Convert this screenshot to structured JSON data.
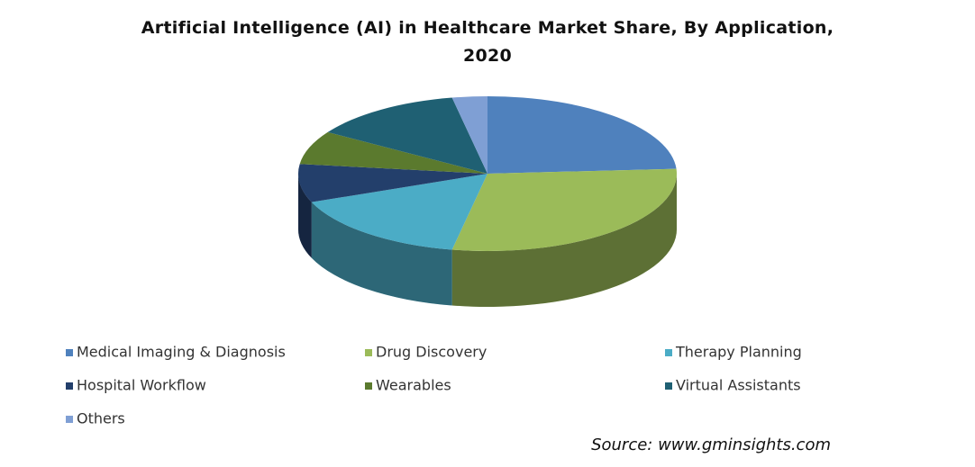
{
  "chart_data": {
    "type": "pie3d",
    "title": "Artificial Intelligence (AI) in Healthcare Market Share, By Application, 2020",
    "categories": [
      "Medical Imaging & Diagnosis",
      "Drug Discovery",
      "Therapy Planning",
      "Hospital Workflow",
      "Wearables",
      "Virtual Assistants",
      "Others"
    ],
    "values": [
      24,
      29,
      16,
      8,
      7,
      13,
      3
    ],
    "colors": [
      "#4f81bd",
      "#9bbb59",
      "#4bacc6",
      "#233f6b",
      "#5b7a2e",
      "#1f6073",
      "#7f9fd4"
    ],
    "legend": "bottom",
    "source": "Source: www.gminsights.com"
  }
}
